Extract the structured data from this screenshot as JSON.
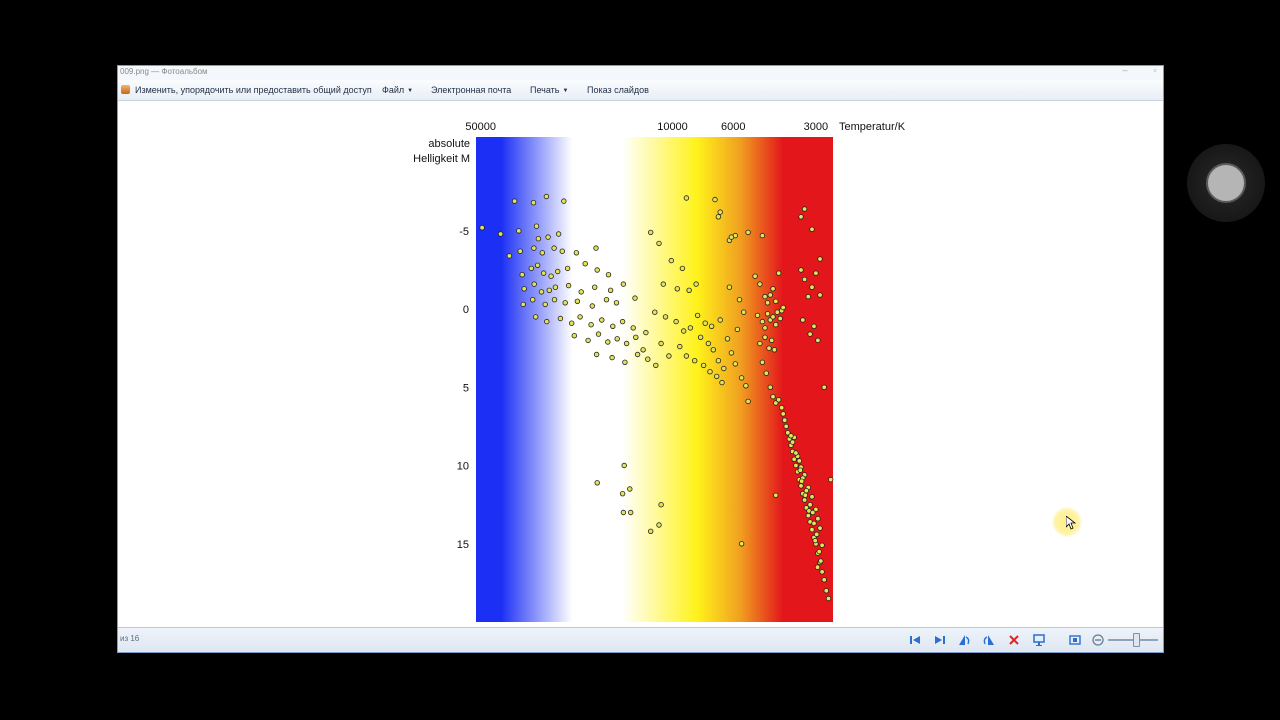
{
  "window": {
    "title": "009.png — Фотоальбом"
  },
  "menubar": {
    "items": [
      {
        "label": "Изменить, упорядочить или предоставить общий доступ",
        "dropdown": false
      },
      {
        "label": "Файл",
        "dropdown": true
      },
      {
        "label": "Электронная почта",
        "dropdown": false
      },
      {
        "label": "Печать",
        "dropdown": true
      },
      {
        "label": "Показ слайдов",
        "dropdown": false
      }
    ]
  },
  "statusbar": {
    "counter": "из 16",
    "controls": [
      "first-icon",
      "last-icon",
      "rotate-left-icon",
      "rotate-right-icon",
      "delete-icon",
      "slideshow-icon",
      "fit-icon",
      "zoom-out-icon"
    ]
  },
  "colors": {
    "hot_blue": "#1b2ff5",
    "white": "#ffffff",
    "yellow": "#fff21a",
    "orange": "#f0a020",
    "red": "#e3161b",
    "star_fill": "#e3e35a",
    "star_stroke": "#222222"
  },
  "chart_data": {
    "type": "scatter",
    "xlabel": "Temperatur/K",
    "ylabel": "absolute Helligkeit M",
    "x_scale": "log-reversed",
    "xlim": [
      52000,
      2600
    ],
    "ylim": [
      -11,
      20
    ],
    "x_ticks": [
      50000,
      10000,
      6000,
      3000
    ],
    "x_tick_labels": [
      "50000",
      "10000",
      "6000",
      "3000"
    ],
    "y_ticks": [
      -5,
      0,
      5,
      10,
      15
    ],
    "y_tick_labels": [
      "-5",
      "0",
      "5",
      "10",
      "15"
    ],
    "series": [
      {
        "points": [
          [
            37600,
            -6.9
          ],
          [
            32100,
            -6.8
          ],
          [
            28800,
            -7.2
          ],
          [
            24900,
            -6.9
          ],
          [
            42300,
            -4.8
          ],
          [
            36300,
            -5.0
          ],
          [
            31300,
            -5.3
          ],
          [
            30800,
            -4.5
          ],
          [
            28400,
            -4.6
          ],
          [
            26000,
            -4.8
          ],
          [
            49400,
            -5.2
          ],
          [
            39300,
            -3.4
          ],
          [
            35900,
            -3.7
          ],
          [
            32000,
            -3.9
          ],
          [
            29800,
            -3.6
          ],
          [
            27000,
            -3.9
          ],
          [
            25200,
            -3.7
          ],
          [
            22400,
            -3.6
          ],
          [
            19000,
            -3.9
          ],
          [
            35300,
            -2.2
          ],
          [
            32700,
            -2.6
          ],
          [
            31000,
            -2.8
          ],
          [
            29500,
            -2.3
          ],
          [
            27700,
            -2.1
          ],
          [
            26200,
            -2.4
          ],
          [
            24100,
            -2.6
          ],
          [
            20800,
            -2.9
          ],
          [
            18800,
            -2.5
          ],
          [
            17100,
            -2.2
          ],
          [
            34700,
            -1.3
          ],
          [
            31900,
            -1.6
          ],
          [
            30000,
            -1.1
          ],
          [
            28100,
            -1.2
          ],
          [
            26700,
            -1.4
          ],
          [
            23900,
            -1.5
          ],
          [
            21500,
            -1.1
          ],
          [
            19200,
            -1.4
          ],
          [
            16800,
            -1.2
          ],
          [
            15100,
            -1.6
          ],
          [
            35000,
            -0.3
          ],
          [
            32300,
            -0.6
          ],
          [
            29100,
            -0.3
          ],
          [
            26900,
            -0.6
          ],
          [
            24600,
            -0.4
          ],
          [
            22200,
            -0.5
          ],
          [
            19600,
            -0.2
          ],
          [
            17400,
            -0.6
          ],
          [
            16000,
            -0.4
          ],
          [
            13700,
            -0.7
          ],
          [
            31500,
            0.5
          ],
          [
            28700,
            0.8
          ],
          [
            25600,
            0.6
          ],
          [
            23300,
            0.9
          ],
          [
            21700,
            0.5
          ],
          [
            19800,
            1.0
          ],
          [
            18100,
            0.7
          ],
          [
            16500,
            1.1
          ],
          [
            15200,
            0.8
          ],
          [
            13900,
            1.2
          ],
          [
            22800,
            1.7
          ],
          [
            20300,
            2.0
          ],
          [
            18600,
            1.6
          ],
          [
            17200,
            2.1
          ],
          [
            15900,
            1.9
          ],
          [
            14700,
            2.2
          ],
          [
            13600,
            1.8
          ],
          [
            12800,
            2.6
          ],
          [
            18900,
            2.9
          ],
          [
            16600,
            3.1
          ],
          [
            14900,
            3.4
          ],
          [
            13400,
            2.9
          ],
          [
            12300,
            3.2
          ],
          [
            11500,
            3.6
          ],
          [
            12000,
            -4.9
          ],
          [
            11200,
            -4.2
          ],
          [
            10100,
            -3.1
          ],
          [
            9200,
            -2.6
          ],
          [
            10800,
            -1.6
          ],
          [
            9600,
            -1.3
          ],
          [
            8700,
            -1.2
          ],
          [
            8200,
            -1.6
          ],
          [
            11600,
            0.2
          ],
          [
            10600,
            0.5
          ],
          [
            9700,
            0.8
          ],
          [
            9100,
            1.4
          ],
          [
            8600,
            1.2
          ],
          [
            7900,
            1.8
          ],
          [
            7400,
            2.2
          ],
          [
            7100,
            2.6
          ],
          [
            6800,
            3.3
          ],
          [
            6500,
            3.8
          ],
          [
            12500,
            1.5
          ],
          [
            11000,
            2.2
          ],
          [
            10300,
            3.0
          ],
          [
            9400,
            2.4
          ],
          [
            8900,
            3.0
          ],
          [
            8300,
            3.3
          ],
          [
            7700,
            3.6
          ],
          [
            7300,
            4.0
          ],
          [
            6900,
            4.3
          ],
          [
            6600,
            4.7
          ],
          [
            8100,
            0.4
          ],
          [
            7600,
            0.9
          ],
          [
            7200,
            1.1
          ],
          [
            6700,
            0.7
          ],
          [
            6300,
            1.9
          ],
          [
            6100,
            2.8
          ],
          [
            5900,
            3.5
          ],
          [
            5600,
            4.4
          ],
          [
            5400,
            4.9
          ],
          [
            5300,
            5.9
          ],
          [
            6200,
            -1.4
          ],
          [
            5700,
            -0.6
          ],
          [
            5500,
            0.2
          ],
          [
            5800,
            1.3
          ],
          [
            8900,
            -7.1
          ],
          [
            7000,
            -7.0
          ],
          [
            6800,
            -5.9
          ],
          [
            6700,
            -6.2
          ],
          [
            5900,
            -4.7
          ],
          [
            5300,
            -4.9
          ],
          [
            4700,
            -4.7
          ],
          [
            6200,
            -4.4
          ],
          [
            6100,
            -4.6
          ],
          [
            5000,
            -2.1
          ],
          [
            4800,
            -1.6
          ],
          [
            4600,
            -0.8
          ],
          [
            4500,
            -0.4
          ],
          [
            4400,
            -0.9
          ],
          [
            4300,
            -1.3
          ],
          [
            4200,
            -0.5
          ],
          [
            4100,
            -2.3
          ],
          [
            4000,
            0.1
          ],
          [
            4900,
            0.4
          ],
          [
            4700,
            0.8
          ],
          [
            4600,
            1.2
          ],
          [
            4500,
            0.3
          ],
          [
            4400,
            0.7
          ],
          [
            4300,
            0.5
          ],
          [
            4200,
            1.0
          ],
          [
            4150,
            0.2
          ],
          [
            4050,
            0.6
          ],
          [
            3950,
            -0.1
          ],
          [
            4800,
            2.2
          ],
          [
            4600,
            1.8
          ],
          [
            4450,
            2.5
          ],
          [
            4350,
            2.0
          ],
          [
            4250,
            2.6
          ],
          [
            4700,
            3.4
          ],
          [
            4550,
            4.1
          ],
          [
            4400,
            5.0
          ],
          [
            3400,
            -2.5
          ],
          [
            3300,
            -1.9
          ],
          [
            3200,
            -0.8
          ],
          [
            3100,
            -1.4
          ],
          [
            3000,
            -2.3
          ],
          [
            2900,
            -0.9
          ],
          [
            3350,
            0.7
          ],
          [
            3150,
            1.6
          ],
          [
            3050,
            1.1
          ],
          [
            2950,
            2.0
          ],
          [
            3300,
            -6.4
          ],
          [
            3400,
            -5.9
          ],
          [
            3100,
            -5.1
          ],
          [
            2900,
            -3.2
          ],
          [
            4300,
            5.6
          ],
          [
            4200,
            6.0
          ],
          [
            4100,
            5.8
          ],
          [
            4000,
            6.3
          ],
          [
            3950,
            6.7
          ],
          [
            3900,
            7.1
          ],
          [
            3850,
            7.5
          ],
          [
            3800,
            7.9
          ],
          [
            3750,
            8.3
          ],
          [
            3700,
            8.7
          ],
          [
            3650,
            9.1
          ],
          [
            3600,
            9.6
          ],
          [
            3550,
            10.0
          ],
          [
            3500,
            10.4
          ],
          [
            3450,
            10.9
          ],
          [
            3400,
            11.3
          ],
          [
            3350,
            11.8
          ],
          [
            3300,
            12.2
          ],
          [
            3250,
            12.7
          ],
          [
            3200,
            13.2
          ],
          [
            3150,
            13.6
          ],
          [
            3100,
            14.1
          ],
          [
            3050,
            14.6
          ],
          [
            3000,
            15.0
          ],
          [
            2950,
            15.6
          ],
          [
            2900,
            16.2
          ],
          [
            2850,
            16.8
          ],
          [
            2800,
            17.3
          ],
          [
            2750,
            18.0
          ],
          [
            2700,
            18.5
          ],
          [
            3600,
            8.2
          ],
          [
            3500,
            9.4
          ],
          [
            3400,
            10.1
          ],
          [
            3300,
            10.6
          ],
          [
            3200,
            11.4
          ],
          [
            3100,
            12.0
          ],
          [
            3000,
            12.8
          ],
          [
            2950,
            13.4
          ],
          [
            2900,
            14.0
          ],
          [
            2850,
            15.1
          ],
          [
            3550,
            9.2
          ],
          [
            3450,
            9.7
          ],
          [
            3350,
            10.8
          ],
          [
            3250,
            11.6
          ],
          [
            3150,
            12.5
          ],
          [
            3050,
            13.7
          ],
          [
            2980,
            14.4
          ],
          [
            2920,
            15.5
          ],
          [
            2880,
            16.1
          ],
          [
            3700,
            8.1
          ],
          [
            3650,
            8.5
          ],
          [
            3420,
            10.3
          ],
          [
            3380,
            11.0
          ],
          [
            3280,
            11.9
          ],
          [
            3180,
            12.9
          ],
          [
            3080,
            13.0
          ],
          [
            3020,
            14.8
          ],
          [
            2960,
            16.5
          ],
          [
            2650,
            10.9
          ],
          [
            2800,
            5.0
          ],
          [
            15000,
            10.0
          ],
          [
            18800,
            11.1
          ],
          [
            15200,
            11.8
          ],
          [
            14300,
            11.5
          ],
          [
            15100,
            13.0
          ],
          [
            14200,
            13.0
          ],
          [
            12000,
            14.2
          ],
          [
            11200,
            13.8
          ],
          [
            11000,
            12.5
          ],
          [
            4200,
            11.9
          ],
          [
            5600,
            15.0
          ]
        ]
      }
    ]
  }
}
